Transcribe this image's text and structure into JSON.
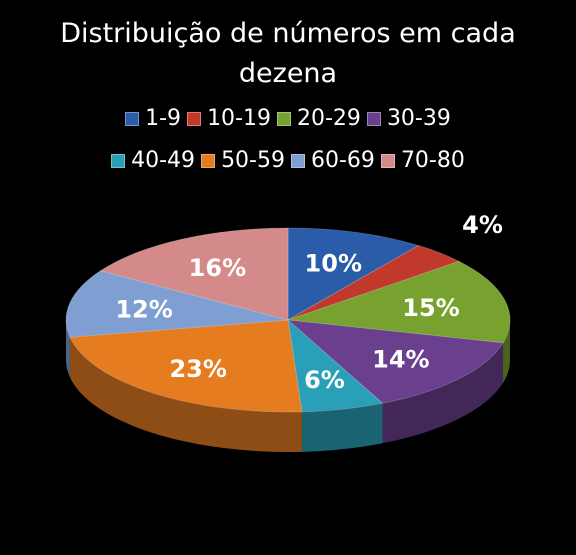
{
  "title_lines": [
    "Distribuição de números em cada",
    "dezena"
  ],
  "chart_data": {
    "type": "pie",
    "title": "Distribuição de números em cada dezena",
    "legend_position": "top",
    "categories": [
      "1-9",
      "10-19",
      "20-29",
      "30-39",
      "40-49",
      "50-59",
      "60-69",
      "70-80"
    ],
    "values": [
      10,
      4,
      15,
      14,
      6,
      23,
      12,
      16
    ],
    "labels": [
      "10%",
      "4%",
      "15%",
      "14%",
      "6%",
      "23%",
      "12%",
      "16%"
    ],
    "colors": [
      "#2a5caa",
      "#c0392b",
      "#78a22f",
      "#6a3f8e",
      "#2aa0b8",
      "#e57c20",
      "#7f9fd2",
      "#d38a88"
    ]
  }
}
